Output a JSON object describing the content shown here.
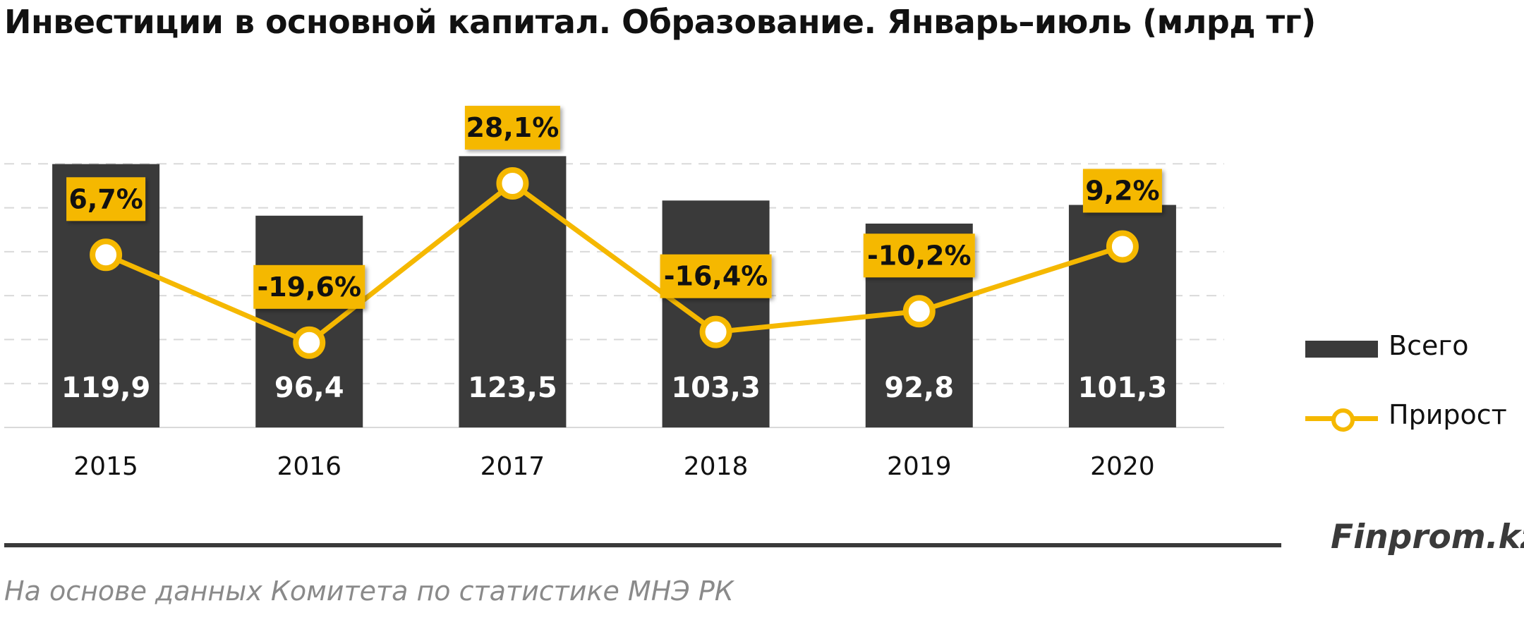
{
  "title": "Инвестиции в основной капитал. Образование. Январь–июль (млрд тг)",
  "colors": {
    "bar": "#3a3a3a",
    "line": "#f5b800",
    "label_bg": "#f5b800",
    "grid": "#d9d9d9"
  },
  "chart_data": {
    "type": "bar",
    "categories": [
      "2015",
      "2016",
      "2017",
      "2018",
      "2019",
      "2020"
    ],
    "series": [
      {
        "name": "Всего",
        "type": "bar",
        "values": [
          119.9,
          96.4,
          123.5,
          103.3,
          92.8,
          101.3
        ],
        "labels": [
          "119,9",
          "96,4",
          "123,5",
          "103,3",
          "92,8",
          "101,3"
        ]
      },
      {
        "name": "Прирост",
        "type": "line",
        "values": [
          6.7,
          -19.6,
          28.1,
          -16.4,
          -10.2,
          9.2
        ],
        "labels": [
          "6,7%",
          "-19,6%",
          "28,1%",
          "-16,4%",
          "-10,2%",
          "9,2%"
        ]
      }
    ],
    "bar_ylim": [
      0,
      140
    ],
    "line_ylim": [
      -45,
      45
    ],
    "grid": true,
    "legend_position": "right"
  },
  "legend": [
    {
      "label": "Всего",
      "kind": "bar"
    },
    {
      "label": "Прирост",
      "kind": "line"
    }
  ],
  "brand": "Finprom.kz",
  "source": "На основе данных  Комитета по статистике МНЭ РК"
}
